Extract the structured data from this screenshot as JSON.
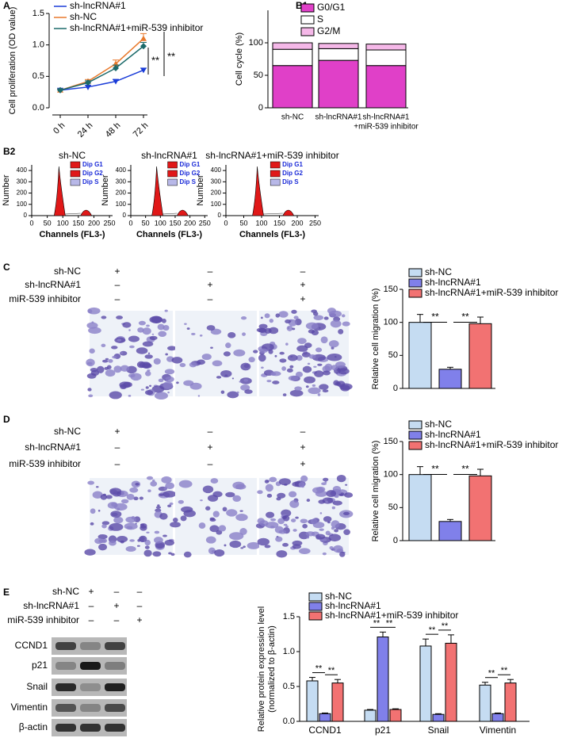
{
  "chart_data": [
    {
      "type": "line",
      "panel": "A",
      "ylabel": "Cell proliferation (OD value)",
      "categories": [
        "0 h",
        "24 h",
        "48 h",
        "72 h"
      ],
      "ylim": [
        0,
        1.5
      ],
      "yticks": [
        {
          "value": 0,
          "label": "0.0"
        },
        {
          "value": 0.5,
          "label": "0.5"
        },
        {
          "value": 1,
          "label": "1.0"
        },
        {
          "value": 1.5,
          "label": "1.5"
        }
      ],
      "series": [
        {
          "name": "sh-lncRNA#1",
          "color": "#1a3cd8",
          "marker": "down",
          "values": [
            0.28,
            0.33,
            0.42,
            0.6
          ],
          "errors": [
            0.02,
            0.03,
            0.03,
            0.03
          ]
        },
        {
          "name": "sh-NC",
          "color": "#e8792c",
          "marker": "up",
          "values": [
            0.28,
            0.42,
            0.7,
            1.1
          ],
          "errors": [
            0.02,
            0.03,
            0.06,
            0.08
          ]
        },
        {
          "name": "sh-lncRNA#1+miR-539 inhibitor",
          "color": "#1c6a6a",
          "marker": "diamond",
          "values": [
            0.28,
            0.4,
            0.63,
            0.98
          ],
          "errors": [
            0.02,
            0.03,
            0.05,
            0.06
          ]
        }
      ],
      "annotations": [
        "**",
        "**"
      ]
    },
    {
      "type": "stacked_bar",
      "panel": "B1",
      "ylabel": "Cell cycle (%)",
      "categories": [
        [
          "sh-NC"
        ],
        [
          "sh-lncRNA#1"
        ],
        [
          "sh-lncRNA#1",
          "+miR-539 inhibitor"
        ]
      ],
      "ylim": [
        0,
        150
      ],
      "yticks": [
        0,
        50,
        100
      ],
      "series": [
        {
          "name": "G0/G1",
          "color": "#e040c8",
          "values": [
            65,
            73,
            65
          ],
          "errors": [
            6,
            6,
            6
          ]
        },
        {
          "name": "S",
          "color": "#ffffff",
          "values": [
            25,
            18,
            24
          ],
          "errors": [
            2,
            2,
            2
          ]
        },
        {
          "name": "G2/M",
          "color": "#f5b8e8",
          "values": [
            10,
            8,
            9
          ]
        }
      ]
    },
    {
      "type": "flow",
      "panel": "B2",
      "title": "sh-NC",
      "xlabel": "Channels (FL3-)",
      "ylabel": "Number",
      "xlim": [
        0,
        260
      ],
      "xticks": [
        0,
        50,
        100,
        150,
        200,
        250
      ],
      "ylim": [
        0,
        450
      ],
      "yticks": [
        0,
        100,
        200,
        300,
        400
      ],
      "legend": [
        "Dip G1",
        "Dip G2",
        "Dip S"
      ]
    },
    {
      "type": "flow",
      "title": "sh-lncRNA#1",
      "xlabel": "Channels (FL3-)",
      "ylabel": "Number",
      "xlim": [
        0,
        260
      ],
      "xticks": [
        0,
        50,
        100,
        150,
        200,
        250
      ],
      "ylim": [
        0,
        450
      ],
      "yticks": [
        0,
        100,
        200,
        300,
        400
      ],
      "legend": [
        "Dip G1",
        "Dip G2",
        "Dip S"
      ]
    },
    {
      "type": "flow",
      "title": "sh-lncRNA#1+miR-539 inhibitor",
      "xlabel": "Channels (FL3-)",
      "ylabel": "Number",
      "xlim": [
        0,
        260
      ],
      "xticks": [
        0,
        50,
        100,
        150,
        200,
        250
      ],
      "ylim": [
        0,
        450
      ],
      "yticks": [
        0,
        100,
        200,
        300,
        400
      ],
      "legend": [
        "Dip G1",
        "Dip G2",
        "Dip S"
      ]
    },
    {
      "type": "bar",
      "panel": "C",
      "ylabel": "Relative cell migration (%)",
      "conditions": {
        "labels": [
          "sh-NC",
          "sh-lncRNA#1",
          "miR-539 inhibitor"
        ],
        "signs": [
          [
            "+",
            "–",
            "–"
          ],
          [
            "–",
            "+",
            "+"
          ],
          [
            "–",
            "–",
            "+"
          ]
        ]
      },
      "legend": [
        "sh-NC",
        "sh-lncRNA#1",
        "sh-lncRNA#1+miR-539 inhibitor"
      ],
      "colors": [
        "#c5dcf2",
        "#8080ea",
        "#f27272"
      ],
      "values": [
        100,
        29,
        98
      ],
      "errors": [
        12,
        3,
        10
      ],
      "ylim": [
        0,
        150
      ],
      "yticks": [
        0,
        50,
        100,
        150
      ],
      "annotations": [
        "**",
        "**"
      ]
    },
    {
      "type": "bar",
      "panel": "D",
      "ylabel": "Relative cell migration (%)",
      "conditions": {
        "labels": [
          "sh-NC",
          "sh-lncRNA#1",
          "miR-539 inhibitor"
        ],
        "signs": [
          [
            "+",
            "–",
            "–"
          ],
          [
            "–",
            "+",
            "+"
          ],
          [
            "–",
            "–",
            "+"
          ]
        ]
      },
      "legend": [
        "sh-NC",
        "sh-lncRNA#1",
        "sh-lncRNA#1+miR-539 inhibitor"
      ],
      "colors": [
        "#c5dcf2",
        "#8080ea",
        "#f27272"
      ],
      "values": [
        100,
        29,
        98
      ],
      "errors": [
        12,
        3,
        10
      ],
      "ylim": [
        0,
        150
      ],
      "yticks": [
        0,
        50,
        100,
        150
      ],
      "annotations": [
        "**",
        "**"
      ]
    },
    {
      "type": "grouped_bar",
      "panel": "E",
      "ylabel": [
        "Relative protein expression level",
        "(normalized to β-actin)"
      ],
      "conditions": {
        "labels": [
          "sh-NC",
          "sh-lncRNA#1",
          "miR-539 inhibitor"
        ],
        "signs": [
          [
            "+",
            "–",
            "–"
          ],
          [
            "–",
            "+",
            "–"
          ],
          [
            "–",
            "–",
            "+"
          ]
        ]
      },
      "blot_rows": [
        "CCND1",
        "p21",
        "Snail",
        "Vimentin",
        "β-actin"
      ],
      "categories": [
        "CCND1",
        "p21",
        "Snail",
        "Vimentin"
      ],
      "ylim": [
        0,
        1.5
      ],
      "yticks": [
        {
          "value": 0,
          "label": "0.0"
        },
        {
          "value": 0.5,
          "label": "0.5"
        },
        {
          "value": 1,
          "label": "1.0"
        },
        {
          "value": 1.5,
          "label": "1.5"
        }
      ],
      "series": [
        {
          "name": "sh-NC",
          "color": "#c5dcf2",
          "values": [
            0.58,
            0.16,
            1.08,
            0.52
          ],
          "errors": [
            0.05,
            0.01,
            0.1,
            0.04
          ]
        },
        {
          "name": "sh-lncRNA#1",
          "color": "#8080ea",
          "values": [
            0.11,
            1.21,
            0.1,
            0.11
          ],
          "errors": [
            0.01,
            0.07,
            0.01,
            0.01
          ]
        },
        {
          "name": "sh-lncRNA#1+miR-539 inhibitor",
          "color": "#f27272",
          "values": [
            0.55,
            0.17,
            1.12,
            0.55
          ],
          "errors": [
            0.05,
            0.01,
            0.12,
            0.05
          ]
        }
      ],
      "annotations": [
        "**",
        "**",
        "**",
        "**",
        "**",
        "**",
        "**",
        "**"
      ]
    }
  ]
}
